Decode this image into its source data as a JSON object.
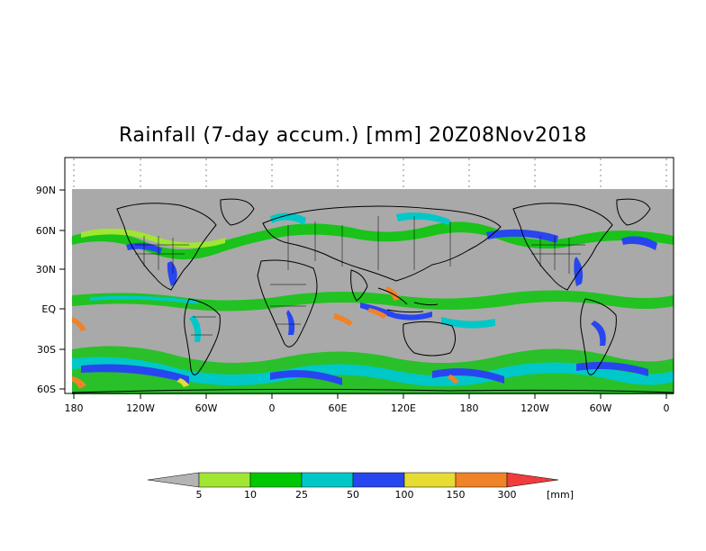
{
  "title": "Rainfall (7-day accum.) [mm] 20Z08Nov2018",
  "x_ticks": [
    "180",
    "120W",
    "60W",
    "0",
    "60E",
    "120E",
    "180",
    "120W",
    "60W",
    "0"
  ],
  "y_ticks": [
    "90N",
    "60N",
    "30N",
    "EQ",
    "30S",
    "60S"
  ],
  "colorbar": {
    "thresholds": [
      "5",
      "10",
      "25",
      "50",
      "100",
      "150",
      "300"
    ],
    "unit": "[mm]",
    "colors": [
      "#b4b4b4",
      "#a0e632",
      "#00c800",
      "#00c8c8",
      "#2846f0",
      "#e6dc32",
      "#f08228",
      "#f03c3c"
    ]
  },
  "map": {
    "background_color": "#a9a9a9",
    "land_outline_color": "#000000"
  }
}
